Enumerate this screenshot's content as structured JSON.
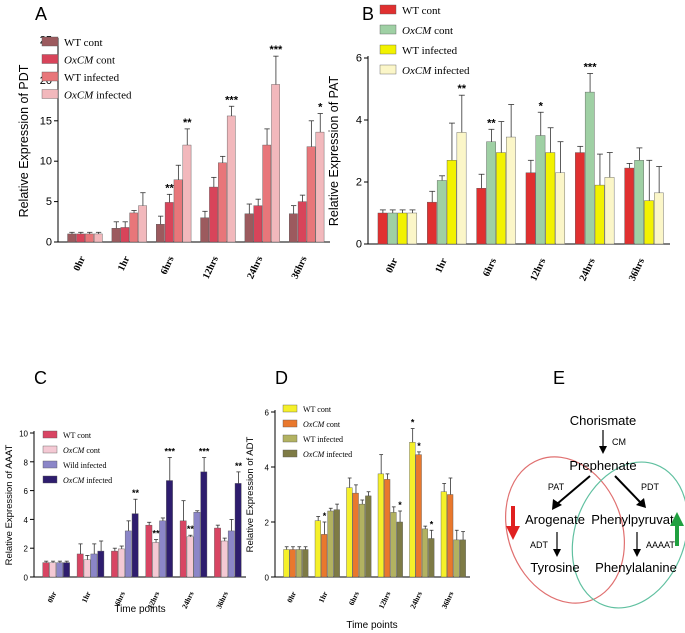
{
  "chart_data": [
    {
      "panel_label": "A",
      "type": "bar",
      "ylabel": "Relative Expression of PDT",
      "xlabel": "",
      "ylim": [
        0,
        25
      ],
      "yticks": [
        0,
        5,
        10,
        15,
        20,
        25
      ],
      "categories": [
        "0hr",
        "1hr",
        "6hrs",
        "12hrs",
        "24hrs",
        "36hrs"
      ],
      "series": [
        {
          "name": "WT cont",
          "italic_part": "",
          "color": "#9c5a5e",
          "values": [
            1.0,
            1.7,
            2.2,
            3.0,
            3.5,
            3.5
          ],
          "errors": [
            0.2,
            0.8,
            1.0,
            0.8,
            1.2,
            1.0
          ]
        },
        {
          "name": "OxCM cont",
          "italic_part": "OxCM",
          "color": "#d8445a",
          "values": [
            1.0,
            1.8,
            4.9,
            6.8,
            4.5,
            5.0
          ],
          "errors": [
            0.2,
            0.7,
            1.0,
            1.2,
            0.8,
            0.8
          ]
        },
        {
          "name": "WT infected",
          "italic_part": "",
          "color": "#e8767a",
          "values": [
            1.0,
            3.6,
            7.7,
            9.8,
            12.0,
            11.8
          ],
          "errors": [
            0.2,
            0.3,
            1.8,
            0.8,
            2.0,
            3.2
          ]
        },
        {
          "name": "OxCM infected",
          "italic_part": "OxCM",
          "color": "#f2b8bc",
          "values": [
            1.0,
            4.5,
            12.0,
            15.6,
            19.5,
            13.6
          ],
          "errors": [
            0.2,
            1.6,
            2.0,
            1.2,
            3.5,
            2.3
          ]
        }
      ],
      "annotations": [
        {
          "category": "6hrs",
          "series": 1,
          "text": "**"
        },
        {
          "category": "6hrs",
          "series": 3,
          "text": "**"
        },
        {
          "category": "12hrs",
          "series": 3,
          "text": "***"
        },
        {
          "category": "24hrs",
          "series": 3,
          "text": "***"
        },
        {
          "category": "36hrs",
          "series": 3,
          "text": "*"
        }
      ]
    },
    {
      "panel_label": "B",
      "type": "bar",
      "ylabel": "Relative Expression of PAT",
      "xlabel": "",
      "ylim": [
        0,
        6
      ],
      "yticks": [
        0,
        2,
        4,
        6
      ],
      "categories": [
        "0hr",
        "1hr",
        "6hrs",
        "12hrs",
        "24hrs",
        "36hrs"
      ],
      "series": [
        {
          "name": "WT cont",
          "italic_part": "",
          "color": "#e03030",
          "values": [
            1.0,
            1.35,
            1.8,
            2.3,
            2.95,
            2.45
          ],
          "errors": [
            0.1,
            0.35,
            0.45,
            0.4,
            0.2,
            0.15
          ]
        },
        {
          "name": "OxCM cont",
          "italic_part": "OxCM",
          "color": "#9fd0a4",
          "values": [
            1.0,
            2.05,
            3.3,
            3.5,
            4.9,
            2.7
          ],
          "errors": [
            0.1,
            0.15,
            0.4,
            0.75,
            0.6,
            0.4
          ]
        },
        {
          "name": "WT infected",
          "italic_part": "",
          "color": "#f2f200",
          "values": [
            1.0,
            2.7,
            2.95,
            2.95,
            1.9,
            1.4
          ],
          "errors": [
            0.1,
            1.2,
            1.0,
            0.8,
            1.0,
            1.3
          ]
        },
        {
          "name": "OxCM infected",
          "italic_part": "OxCM",
          "color": "#fbf6c8",
          "values": [
            1.0,
            3.6,
            3.45,
            2.3,
            2.15,
            1.65
          ],
          "errors": [
            0.1,
            1.2,
            1.05,
            1.0,
            0.8,
            0.85
          ]
        }
      ],
      "annotations": [
        {
          "category": "1hr",
          "series": 3,
          "text": "**"
        },
        {
          "category": "6hrs",
          "series": 1,
          "text": "**"
        },
        {
          "category": "12hrs",
          "series": 1,
          "text": "*"
        },
        {
          "category": "24hrs",
          "series": 1,
          "text": "***"
        }
      ]
    },
    {
      "panel_label": "C",
      "type": "bar",
      "ylabel": "Relative Expression of AAAT",
      "xlabel": "Time points",
      "ylim": [
        0,
        10
      ],
      "yticks": [
        0,
        2,
        4,
        6,
        8,
        10
      ],
      "categories": [
        "0hr",
        "1hr",
        "6hrs",
        "12hrs",
        "24hrs",
        "36hrs"
      ],
      "series": [
        {
          "name": "WT cont",
          "italic_part": "",
          "color": "#d84563",
          "values": [
            1.0,
            1.6,
            1.8,
            3.6,
            3.9,
            3.4
          ],
          "errors": [
            0.1,
            0.7,
            0.2,
            0.2,
            1.4,
            0.2
          ]
        },
        {
          "name": "OxCM cont",
          "italic_part": "OxCM",
          "color": "#f4c9d4",
          "values": [
            1.0,
            1.2,
            1.95,
            2.4,
            2.8,
            2.5
          ],
          "errors": [
            0.1,
            0.3,
            0.2,
            0.2,
            0.1,
            0.2
          ]
        },
        {
          "name": "Wild infected",
          "italic_part": "",
          "color": "#8b86c8",
          "values": [
            1.0,
            1.6,
            3.2,
            3.9,
            4.5,
            3.2
          ],
          "errors": [
            0.1,
            0.7,
            0.7,
            0.2,
            0.1,
            0.8
          ]
        },
        {
          "name": "OxCM infected",
          "italic_part": "OxCM",
          "color": "#2e1d6e",
          "values": [
            1.0,
            1.8,
            4.4,
            6.7,
            7.3,
            6.5
          ],
          "errors": [
            0.1,
            0.7,
            1.0,
            1.6,
            1.0,
            0.8
          ]
        }
      ],
      "annotations": [
        {
          "category": "6hrs",
          "series": 3,
          "text": "**"
        },
        {
          "category": "12hrs",
          "series": 1,
          "text": "**"
        },
        {
          "category": "12hrs",
          "series": 3,
          "text": "***"
        },
        {
          "category": "24hrs",
          "series": 1,
          "text": "**"
        },
        {
          "category": "24hrs",
          "series": 3,
          "text": "***"
        },
        {
          "category": "36hrs",
          "series": 3,
          "text": "**"
        }
      ]
    },
    {
      "panel_label": "D",
      "type": "bar",
      "ylabel": "Relative Expression of ADT",
      "xlabel": "Time points",
      "ylim": [
        0,
        6
      ],
      "yticks": [
        0,
        2,
        4,
        6
      ],
      "categories": [
        "0hr",
        "1hr",
        "6hrs",
        "12hrs",
        "24hrs",
        "36hrs"
      ],
      "series": [
        {
          "name": "WT cont",
          "italic_part": "",
          "color": "#f5f02a",
          "values": [
            1.0,
            2.05,
            3.25,
            3.75,
            4.9,
            3.1
          ],
          "errors": [
            0.1,
            0.15,
            0.35,
            0.7,
            0.5,
            0.3
          ]
        },
        {
          "name": "OxCM cont",
          "italic_part": "OxCM",
          "color": "#e9782d",
          "values": [
            1.0,
            1.55,
            3.05,
            3.55,
            4.45,
            3.0
          ],
          "errors": [
            0.1,
            0.45,
            0.3,
            0.2,
            0.1,
            0.6
          ]
        },
        {
          "name": "WT infected",
          "italic_part": "",
          "color": "#b2b261",
          "values": [
            1.0,
            2.4,
            2.65,
            2.35,
            1.75,
            1.35
          ],
          "errors": [
            0.1,
            0.1,
            0.15,
            0.2,
            0.1,
            0.35
          ]
        },
        {
          "name": "OxCM infected",
          "italic_part": "OxCM",
          "color": "#7e7b45",
          "values": [
            1.0,
            2.45,
            2.95,
            2.0,
            1.4,
            1.35
          ],
          "errors": [
            0.1,
            0.2,
            0.15,
            0.4,
            0.3,
            0.3
          ]
        }
      ],
      "annotations": [
        {
          "category": "1hr",
          "series": 1,
          "text": "*"
        },
        {
          "category": "12hrs",
          "series": 3,
          "text": "*"
        },
        {
          "category": "24hrs",
          "series": 0,
          "text": "*"
        },
        {
          "category": "24hrs",
          "series": 1,
          "text": "*"
        },
        {
          "category": "24hrs",
          "series": 3,
          "text": "*"
        }
      ]
    }
  ],
  "pathway": {
    "panel_label": "E",
    "nodes": {
      "chorismate": "Chorismate",
      "prephenate": "Prephenate",
      "arogenate": "Arogenate",
      "phenylpyruvate": "Phenylpyruvate",
      "tyrosine": "Tyrosine",
      "phenylalanine": "Phenylalanine"
    },
    "enzymes": {
      "cm": "CM",
      "pat": "PAT",
      "pdt": "PDT",
      "adt": "ADT",
      "aaaat": "AAAAT"
    },
    "colors": {
      "down_arrow": "#e02020",
      "up_arrow": "#20a040",
      "left_ellipse": "#e07070",
      "right_ellipse": "#60c0a0"
    }
  }
}
